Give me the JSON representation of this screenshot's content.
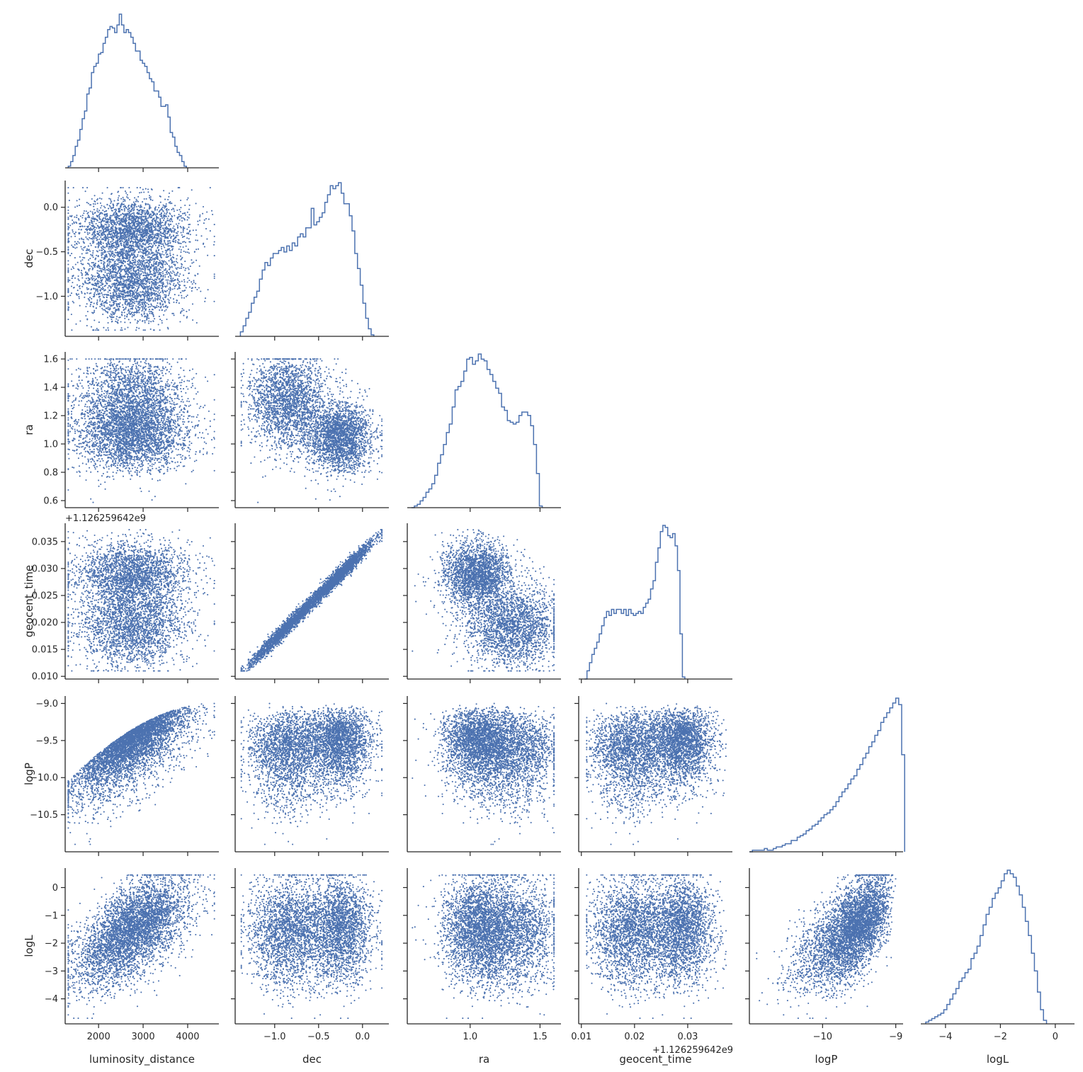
{
  "chart_data": {
    "type": "scatter",
    "layout": "corner",
    "color": "#4c72b0",
    "axis_color": "#262626",
    "variables": [
      {
        "name": "luminosity_distance",
        "label": "luminosity_distance",
        "range": [
          1250,
          4700
        ],
        "ticks": [
          2000,
          3000,
          4000
        ],
        "tick_labels": [
          "2000",
          "3000",
          "4000"
        ]
      },
      {
        "name": "dec",
        "label": "dec",
        "range": [
          -1.45,
          0.3
        ],
        "ticks": [
          -1.0,
          -0.5,
          0.0
        ],
        "tick_labels": [
          "−1.0",
          "−0.5",
          "0.0"
        ]
      },
      {
        "name": "ra",
        "label": "ra",
        "range": [
          0.55,
          1.65
        ],
        "ticks": [
          0.6,
          0.8,
          1.0,
          1.2,
          1.4,
          1.6
        ],
        "tick_labels": [
          "0.6",
          "0.8",
          "1.0",
          "1.2",
          "1.4",
          "1.6"
        ],
        "x_ticks": [
          1.0,
          1.5
        ],
        "x_tick_labels": [
          "1.0",
          "1.5"
        ]
      },
      {
        "name": "geocent_time",
        "label": "geocent_time",
        "range": [
          0.0095,
          0.0384
        ],
        "ticks": [
          0.01,
          0.015,
          0.02,
          0.025,
          0.03,
          0.035
        ],
        "tick_labels": [
          "0.010",
          "0.015",
          "0.020",
          "0.025",
          "0.030",
          "0.035"
        ],
        "x_ticks": [
          0.01,
          0.02,
          0.03
        ],
        "x_tick_labels": [
          "0.01",
          "0.02",
          "0.03"
        ],
        "offset_label": "+1.126259642e9",
        "x_offset_label": "+1.126259642e9"
      },
      {
        "name": "logP",
        "label": "logP",
        "range": [
          -11.0,
          -8.9
        ],
        "ticks": [
          -10.5,
          -10.0,
          -9.5,
          -9.0
        ],
        "tick_labels": [
          "−10.5",
          "−10.0",
          "−9.5",
          "−9.0"
        ],
        "x_ticks": [
          -10,
          -9
        ],
        "x_tick_labels": [
          "−10",
          "−9"
        ]
      },
      {
        "name": "logL",
        "label": "logL",
        "range": [
          -4.9,
          0.7
        ],
        "ticks": [
          -4,
          -3,
          -2,
          -1,
          0
        ],
        "tick_labels": [
          "−4",
          "−3",
          "−2",
          "−1",
          "0"
        ],
        "x_ticks": [
          -4,
          -2,
          0
        ],
        "x_tick_labels": [
          "−4",
          "−2",
          "0"
        ]
      }
    ],
    "histograms": {
      "luminosity_distance": {
        "start": 1320,
        "width": 52,
        "counts": [
          1,
          4,
          8,
          14,
          18,
          25,
          32,
          37,
          48,
          52,
          62,
          66,
          68,
          74,
          75,
          81,
          85,
          90,
          92,
          91,
          88,
          93,
          100,
          93,
          88,
          90,
          88,
          85,
          81,
          76,
          76,
          70,
          68,
          66,
          62,
          58,
          56,
          50,
          50,
          46,
          40,
          40,
          41,
          33,
          23,
          20,
          14,
          10,
          8,
          4,
          1
        ]
      },
      "dec": {
        "start": -1.39,
        "width": 0.031,
        "counts": [
          3,
          7,
          12,
          16,
          22,
          26,
          30,
          38,
          44,
          49,
          47,
          52,
          55,
          55,
          57,
          59,
          56,
          60,
          57,
          62,
          60,
          66,
          68,
          66,
          72,
          72,
          85,
          74,
          76,
          79,
          82,
          89,
          94,
          100,
          98,
          100,
          102,
          95,
          88,
          88,
          80,
          70,
          55,
          45,
          34,
          22,
          12,
          5,
          1
        ]
      },
      "ra": {
        "start": 0.58,
        "width": 0.0208,
        "counts": [
          0,
          1,
          2,
          4,
          6,
          9,
          11,
          14,
          19,
          26,
          31,
          37,
          44,
          49,
          59,
          69,
          71,
          74,
          80,
          87,
          88,
          84,
          86,
          90,
          87,
          86,
          81,
          78,
          74,
          70,
          67,
          59,
          57,
          51,
          50,
          49,
          50,
          54,
          56,
          56,
          54,
          48,
          37,
          20,
          1
        ]
      },
      "geocent_time": {
        "start": 0.0106,
        "width": 0.00046,
        "counts": [
          0,
          4,
          8,
          12,
          15,
          18,
          22,
          26,
          30,
          33,
          31,
          34,
          32,
          34,
          34,
          32,
          34,
          31,
          34,
          32,
          31,
          32,
          33,
          32,
          35,
          37,
          39,
          44,
          48,
          57,
          64,
          72,
          75,
          74,
          70,
          69,
          71,
          65,
          53,
          22,
          1
        ]
      },
      "logP": {
        "start": -11.0,
        "width": 0.0408,
        "counts": [
          0,
          1,
          1,
          1,
          1,
          2,
          1,
          1,
          2,
          3,
          3,
          4,
          5,
          5,
          7,
          7,
          9,
          10,
          11,
          13,
          14,
          16,
          17,
          19,
          21,
          23,
          24,
          26,
          28,
          31,
          34,
          37,
          39,
          42,
          45,
          47,
          51,
          54,
          58,
          61,
          65,
          68,
          72,
          75,
          80,
          83,
          86,
          89,
          92,
          95,
          91,
          60
        ]
      },
      "logL": {
        "start": -4.72,
        "width": 0.11,
        "counts": [
          1,
          2,
          3,
          4,
          5,
          6,
          8,
          11,
          14,
          17,
          20,
          24,
          26,
          29,
          31,
          37,
          40,
          44,
          50,
          56,
          62,
          66,
          71,
          74,
          77,
          81,
          85,
          87,
          85,
          83,
          78,
          73,
          66,
          58,
          50,
          40,
          30,
          18,
          8,
          2
        ]
      }
    },
    "scatter_note": "Each off-diagonal panel is a scatter plot of ~10000 posterior samples of the row variable against the column variable."
  }
}
